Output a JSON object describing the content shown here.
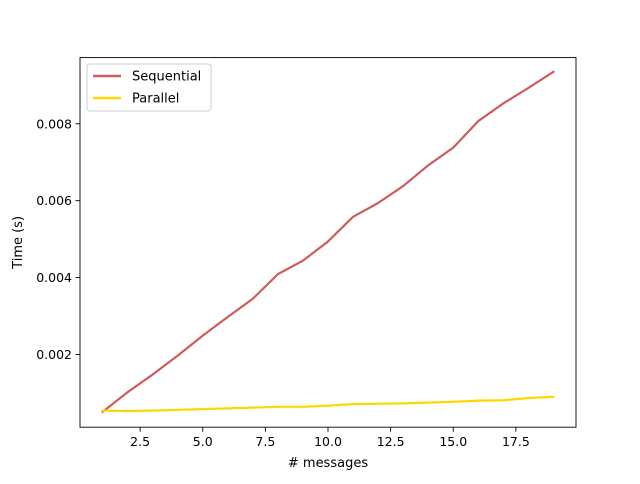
{
  "chart_data": {
    "type": "line",
    "title": "",
    "xlabel": "# messages",
    "ylabel": "Time (s)",
    "xlim": [
      0.1,
      19.9
    ],
    "ylim": [
      0.00011,
      0.00972
    ],
    "xticks": [
      2.5,
      5.0,
      7.5,
      10.0,
      12.5,
      15.0,
      17.5
    ],
    "xtick_labels": [
      "2.5",
      "5.0",
      "7.5",
      "10.0",
      "12.5",
      "15.0",
      "17.5"
    ],
    "yticks": [
      0.002,
      0.004,
      0.006,
      0.008
    ],
    "ytick_labels": [
      "0.002",
      "0.004",
      "0.006",
      "0.008"
    ],
    "grid": false,
    "legend": "upper-left",
    "x": [
      1,
      2,
      3,
      4,
      5,
      6,
      7,
      8,
      9,
      10,
      11,
      12,
      13,
      14,
      15,
      16,
      17,
      18,
      19
    ],
    "series": [
      {
        "name": "Sequential",
        "color": "#cd5c5c",
        "values": [
          0.00051,
          0.00102,
          0.00148,
          0.00197,
          0.00249,
          0.00298,
          0.00345,
          0.00409,
          0.00444,
          0.00494,
          0.00558,
          0.00594,
          0.00638,
          0.00692,
          0.00738,
          0.00807,
          0.00853,
          0.00893,
          0.00935
        ]
      },
      {
        "name": "Parallel",
        "color": "#ffd700",
        "values": [
          0.00054,
          0.00053,
          0.00054,
          0.00056,
          0.00058,
          0.0006,
          0.00062,
          0.00064,
          0.00064,
          0.00067,
          0.00071,
          0.00072,
          0.00073,
          0.00075,
          0.00077,
          0.0008,
          0.00081,
          0.00087,
          0.0009
        ]
      }
    ]
  }
}
